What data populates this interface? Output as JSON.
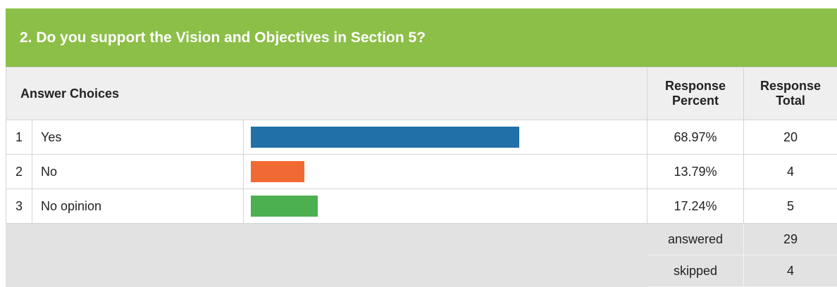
{
  "question": {
    "title": "2. Do you support the Vision and Objectives in Section 5?"
  },
  "table": {
    "headers": {
      "choices": "Answer Choices",
      "percent": "Response Percent",
      "total": "Response Total"
    },
    "rows": [
      {
        "number": 1,
        "choice": "Yes",
        "percent": 68.97,
        "percent_label": "68.97%",
        "total": 20,
        "color": "#2270a8"
      },
      {
        "number": 2,
        "choice": "No",
        "percent": 13.79,
        "percent_label": "13.79%",
        "total": 4,
        "color": "#f26a33"
      },
      {
        "number": 3,
        "choice": "No opinion",
        "percent": 17.24,
        "percent_label": "17.24%",
        "total": 5,
        "color": "#4caf50"
      }
    ],
    "summary": [
      {
        "label": "answered",
        "value": 29
      },
      {
        "label": "skipped",
        "value": 4
      }
    ]
  }
}
